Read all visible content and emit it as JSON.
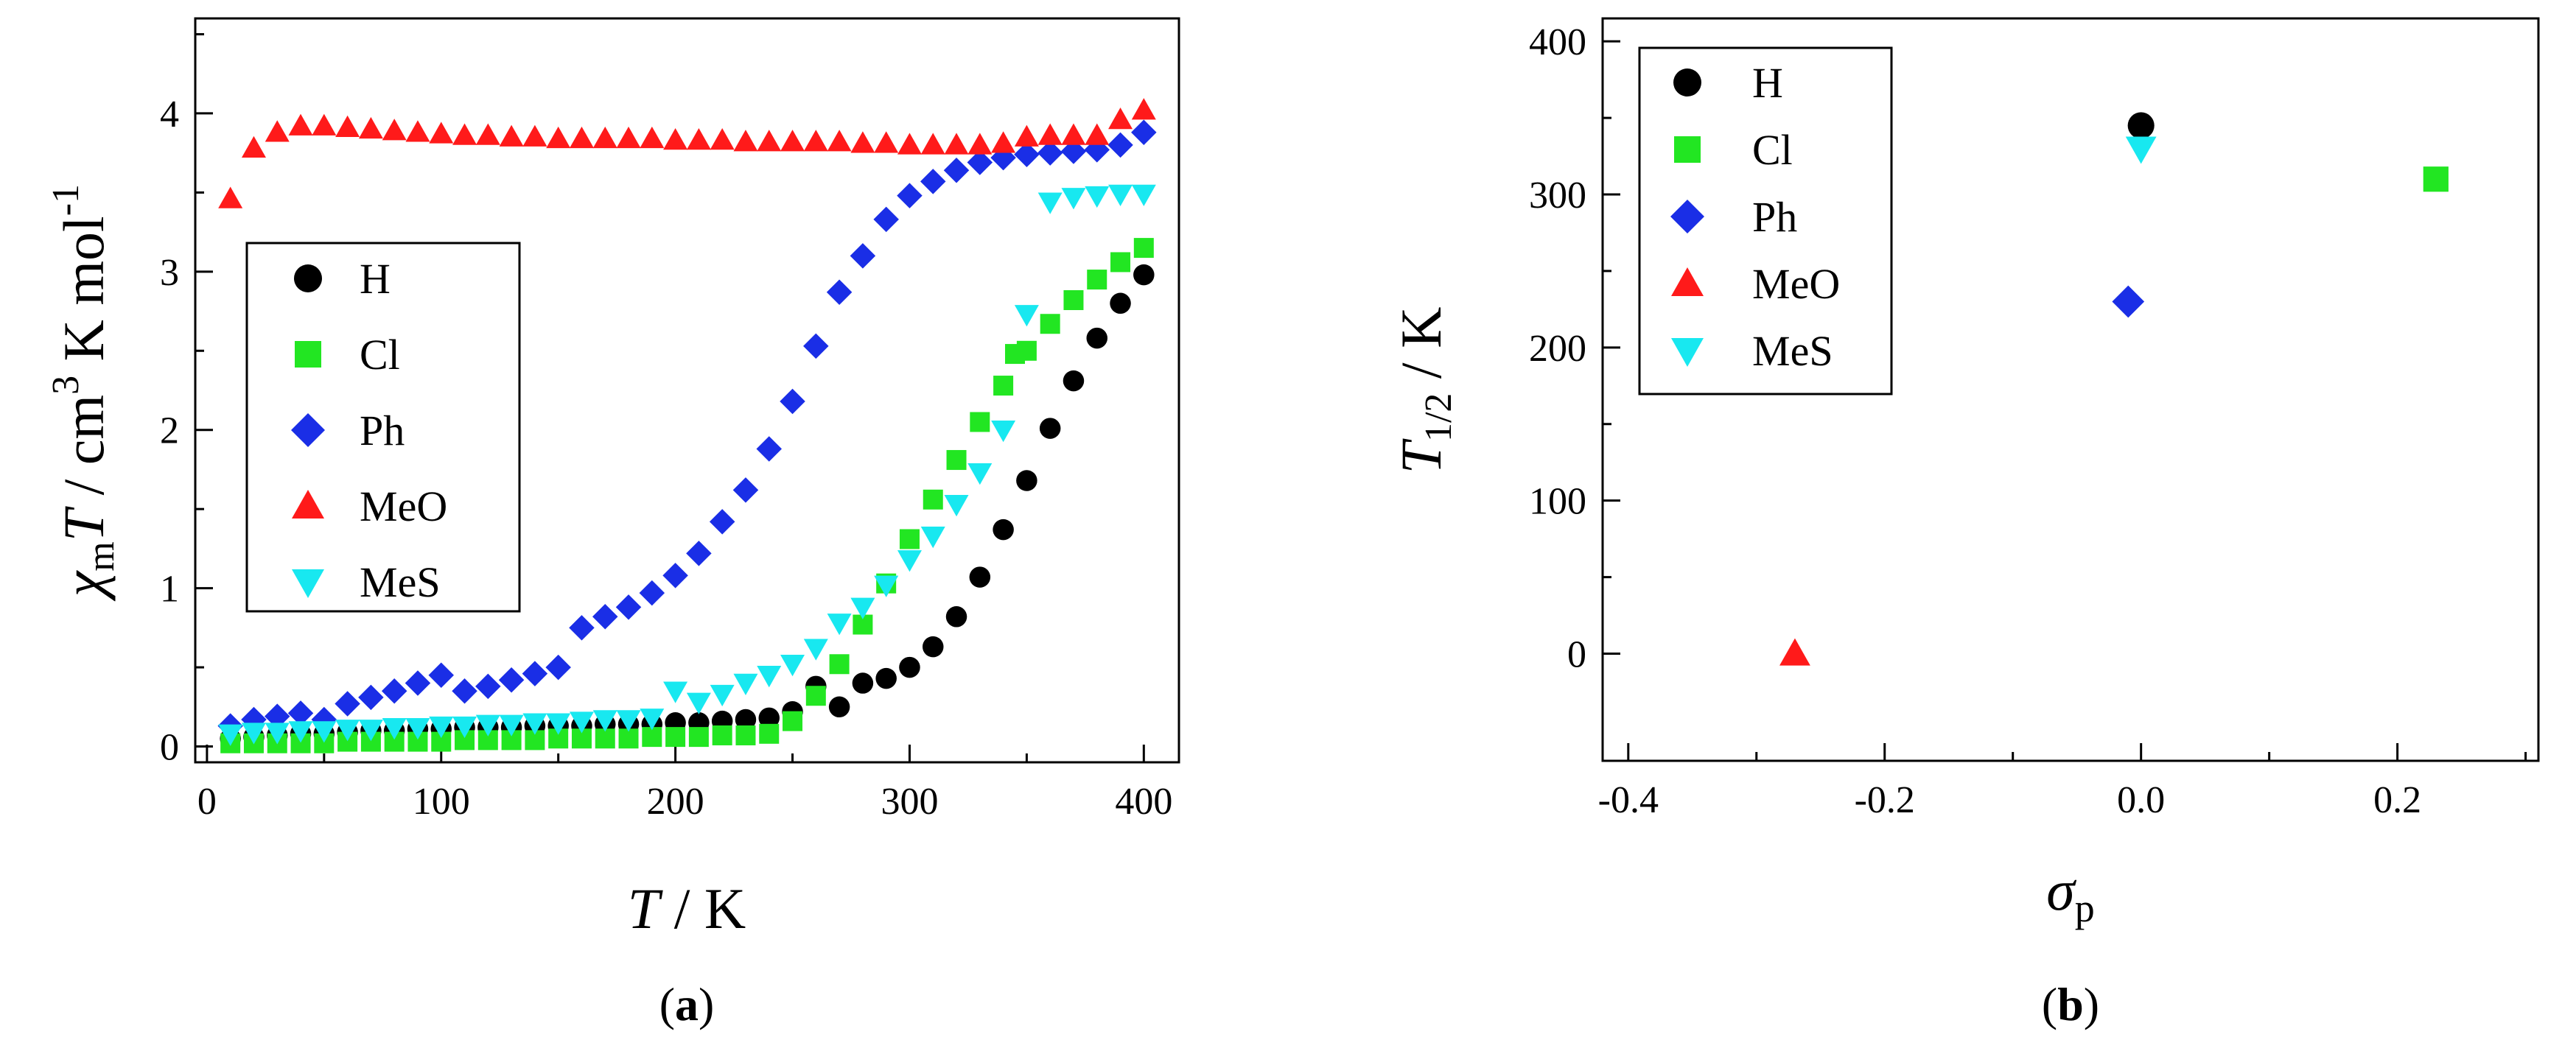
{
  "figure": {
    "panel_a_caption": "a",
    "panel_b_caption": "b"
  },
  "colors": {
    "H": "#000000",
    "Cl": "#22e622",
    "Ph": "#1a2ee6",
    "MeO": "#ff1a1a",
    "MeS": "#18e8f0"
  },
  "chart_data": [
    {
      "id": "a",
      "type": "scatter",
      "title": "",
      "xlabel": "T / K",
      "ylabel": "χmT / cm3 K mol-1",
      "xlim": [
        -5,
        415
      ],
      "ylim": [
        -0.1,
        4.6
      ],
      "xticks": [
        0,
        100,
        200,
        300,
        400
      ],
      "xtick_labels": [
        "0",
        "100",
        "200",
        "300",
        "400"
      ],
      "yticks": [
        0,
        1,
        2,
        3,
        4
      ],
      "ytick_labels": [
        "0",
        "1",
        "2",
        "3",
        "4"
      ],
      "legend": [
        "H",
        "Cl",
        "Ph",
        "MeO",
        "MeS"
      ],
      "legend_position": "left-middle",
      "series": [
        {
          "name": "H",
          "marker": "circle",
          "x": [
            10,
            20,
            30,
            40,
            50,
            60,
            70,
            80,
            90,
            100,
            110,
            120,
            130,
            140,
            150,
            160,
            170,
            180,
            190,
            200,
            210,
            220,
            230,
            240,
            250,
            260,
            270,
            280,
            290,
            300,
            310,
            320,
            330,
            340,
            350,
            360,
            370,
            380,
            390,
            400
          ],
          "y": [
            0.05,
            0.06,
            0.07,
            0.08,
            0.08,
            0.09,
            0.1,
            0.1,
            0.11,
            0.11,
            0.12,
            0.12,
            0.12,
            0.13,
            0.13,
            0.13,
            0.14,
            0.14,
            0.14,
            0.15,
            0.15,
            0.16,
            0.17,
            0.18,
            0.22,
            0.38,
            0.25,
            0.4,
            0.43,
            0.5,
            0.63,
            0.82,
            1.07,
            1.37,
            1.68,
            2.01,
            2.31,
            2.58,
            2.8,
            2.98
          ]
        },
        {
          "name": "Cl",
          "marker": "square",
          "x": [
            10,
            20,
            30,
            40,
            50,
            60,
            70,
            80,
            90,
            100,
            110,
            120,
            130,
            140,
            150,
            160,
            170,
            180,
            190,
            200,
            210,
            220,
            230,
            240,
            250,
            260,
            270,
            280,
            290,
            300,
            310,
            320,
            330,
            340,
            345,
            350,
            360,
            370,
            380,
            390,
            400
          ],
          "y": [
            0.02,
            0.02,
            0.02,
            0.02,
            0.02,
            0.03,
            0.03,
            0.03,
            0.03,
            0.03,
            0.04,
            0.04,
            0.04,
            0.04,
            0.05,
            0.05,
            0.05,
            0.05,
            0.06,
            0.06,
            0.06,
            0.07,
            0.07,
            0.08,
            0.16,
            0.32,
            0.52,
            0.77,
            1.03,
            1.31,
            1.56,
            1.81,
            2.05,
            2.28,
            2.48,
            2.5,
            2.67,
            2.82,
            2.95,
            3.06,
            3.15
          ]
        },
        {
          "name": "Ph",
          "marker": "diamond",
          "x": [
            10,
            20,
            30,
            40,
            50,
            60,
            70,
            80,
            90,
            100,
            110,
            120,
            130,
            140,
            150,
            160,
            170,
            180,
            190,
            200,
            210,
            220,
            230,
            240,
            250,
            260,
            270,
            280,
            290,
            300,
            310,
            320,
            330,
            340,
            350,
            360,
            370,
            380,
            390,
            400
          ],
          "y": [
            0.13,
            0.17,
            0.19,
            0.21,
            0.17,
            0.27,
            0.31,
            0.35,
            0.4,
            0.45,
            0.35,
            0.38,
            0.42,
            0.46,
            0.5,
            0.75,
            0.82,
            0.88,
            0.97,
            1.08,
            1.22,
            1.42,
            1.62,
            1.88,
            2.18,
            2.53,
            2.87,
            3.1,
            3.33,
            3.48,
            3.57,
            3.64,
            3.69,
            3.72,
            3.74,
            3.75,
            3.76,
            3.77,
            3.8,
            3.88
          ]
        },
        {
          "name": "MeO",
          "marker": "triangle-up",
          "x": [
            10,
            20,
            30,
            40,
            50,
            60,
            70,
            80,
            90,
            100,
            110,
            120,
            130,
            140,
            150,
            160,
            170,
            180,
            190,
            200,
            210,
            220,
            230,
            240,
            250,
            260,
            270,
            280,
            290,
            300,
            310,
            320,
            330,
            340,
            350,
            360,
            370,
            380,
            390,
            400
          ],
          "y": [
            3.46,
            3.78,
            3.88,
            3.92,
            3.92,
            3.91,
            3.9,
            3.89,
            3.88,
            3.87,
            3.86,
            3.86,
            3.85,
            3.85,
            3.84,
            3.84,
            3.84,
            3.84,
            3.84,
            3.83,
            3.83,
            3.83,
            3.82,
            3.82,
            3.82,
            3.82,
            3.82,
            3.81,
            3.81,
            3.8,
            3.8,
            3.8,
            3.8,
            3.81,
            3.85,
            3.86,
            3.86,
            3.86,
            3.96,
            4.02
          ]
        },
        {
          "name": "MeS",
          "marker": "triangle-down",
          "x": [
            10,
            20,
            30,
            40,
            50,
            60,
            70,
            80,
            90,
            100,
            110,
            120,
            130,
            140,
            150,
            160,
            170,
            180,
            190,
            200,
            210,
            220,
            230,
            240,
            250,
            260,
            270,
            280,
            290,
            300,
            310,
            320,
            330,
            340,
            350,
            360,
            370,
            380,
            390,
            400
          ],
          "y": [
            0.08,
            0.09,
            0.09,
            0.1,
            0.1,
            0.11,
            0.11,
            0.12,
            0.12,
            0.13,
            0.13,
            0.14,
            0.14,
            0.15,
            0.15,
            0.16,
            0.17,
            0.17,
            0.18,
            0.35,
            0.28,
            0.33,
            0.4,
            0.45,
            0.52,
            0.62,
            0.78,
            0.88,
            1.02,
            1.18,
            1.33,
            1.53,
            1.73,
            2.0,
            2.73,
            3.44,
            3.47,
            3.48,
            3.49,
            3.49
          ]
        }
      ]
    },
    {
      "id": "b",
      "type": "scatter",
      "title": "",
      "xlabel": "σp",
      "ylabel": "T1/2 / K",
      "xlim": [
        -0.42,
        0.31
      ],
      "ylim": [
        -70,
        415
      ],
      "xticks": [
        -0.4,
        -0.2,
        0.0,
        0.2
      ],
      "xtick_labels": [
        "-0.4",
        "-0.2",
        "0.0",
        "0.2"
      ],
      "yticks": [
        0,
        100,
        200,
        300,
        400
      ],
      "ytick_labels": [
        "0",
        "100",
        "200",
        "300",
        "400"
      ],
      "legend": [
        "H",
        "Cl",
        "Ph",
        "MeO",
        "MeS"
      ],
      "legend_position": "top-left",
      "series": [
        {
          "name": "H",
          "marker": "circle",
          "x": [
            0.0
          ],
          "y": [
            345
          ]
        },
        {
          "name": "Cl",
          "marker": "square",
          "x": [
            0.23
          ],
          "y": [
            310
          ]
        },
        {
          "name": "Ph",
          "marker": "diamond",
          "x": [
            -0.01
          ],
          "y": [
            230
          ]
        },
        {
          "name": "MeO",
          "marker": "triangle-up",
          "x": [
            -0.27
          ],
          "y": [
            0
          ]
        },
        {
          "name": "MeS",
          "marker": "triangle-down",
          "x": [
            0.0
          ],
          "y": [
            330
          ]
        }
      ]
    }
  ]
}
